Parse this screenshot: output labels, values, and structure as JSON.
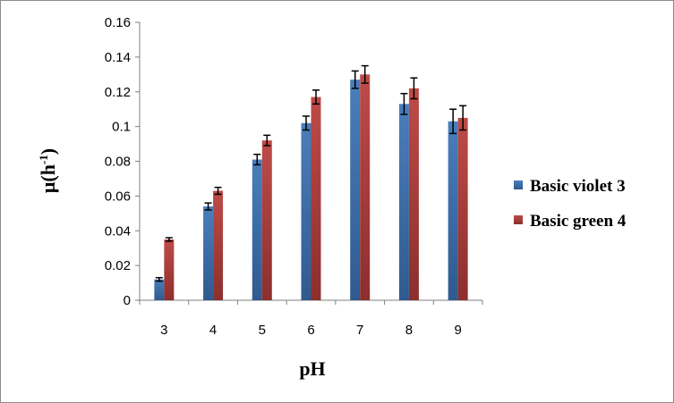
{
  "chart_data": {
    "type": "bar",
    "title": "",
    "xlabel": "pH",
    "ylabel": "μ(h⁻¹)",
    "ylabel_parts": {
      "base": "μ(h",
      "sup": "-1",
      "close": ")"
    },
    "ylim": [
      0,
      0.16
    ],
    "yticks": [
      0,
      0.02,
      0.04,
      0.06,
      0.08,
      0.1,
      0.12,
      0.14,
      0.16
    ],
    "ytick_labels": [
      "0",
      "0.02",
      "0.04",
      "0.06",
      "0.08",
      "0.1",
      "0.12",
      "0.14",
      "0.16"
    ],
    "categories": [
      "3",
      "4",
      "5",
      "6",
      "7",
      "8",
      "9"
    ],
    "series": [
      {
        "name": "Basic violet 3",
        "color": "#4a7ebb",
        "values": [
          0.012,
          0.054,
          0.081,
          0.102,
          0.127,
          0.113,
          0.103
        ],
        "errors": [
          0.001,
          0.002,
          0.003,
          0.004,
          0.005,
          0.006,
          0.007
        ]
      },
      {
        "name": "Basic green 4",
        "color": "#be4b48",
        "values": [
          0.035,
          0.063,
          0.092,
          0.117,
          0.13,
          0.122,
          0.105
        ],
        "errors": [
          0.001,
          0.002,
          0.003,
          0.004,
          0.005,
          0.006,
          0.007
        ]
      }
    ],
    "grid": false,
    "legend_position": "right"
  }
}
